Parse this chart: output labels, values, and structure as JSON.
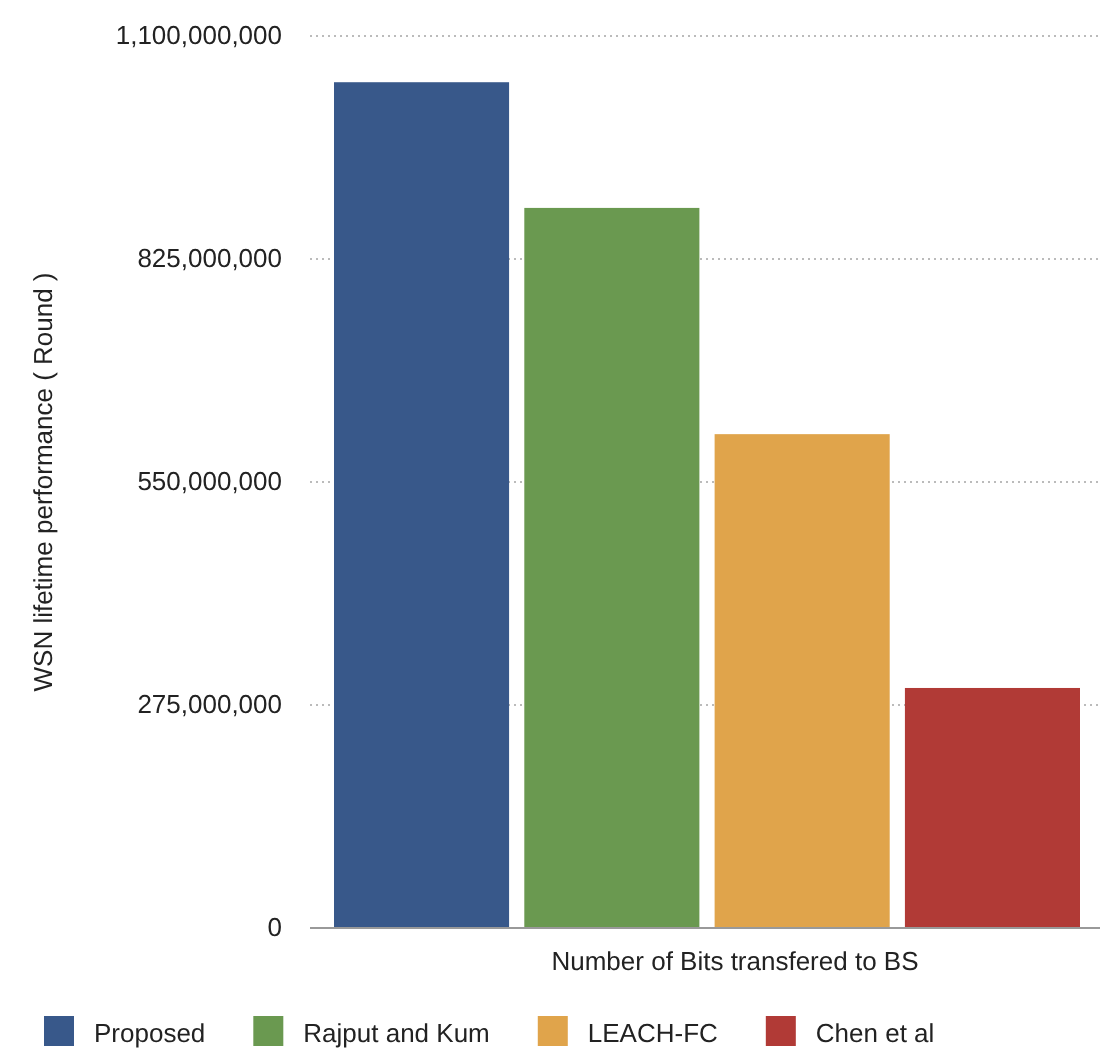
{
  "chart_data": {
    "type": "bar",
    "xlabel": "Number of Bits transfered to BS",
    "ylabel": "WSN lifetime performance ( Round )",
    "categories": [
      null
    ],
    "series": [
      {
        "name": "Proposed",
        "color": "#38588a",
        "values": [
          1043000000
        ]
      },
      {
        "name": "Rajput and Kum",
        "color": "#6a9950",
        "values": [
          888000000
        ]
      },
      {
        "name": "LEACH-FC",
        "color": "#e0a44b",
        "values": [
          609000000
        ]
      },
      {
        "name": "Chen et al",
        "color": "#b13a36",
        "values": [
          296000000
        ]
      }
    ],
    "ylim": [
      0,
      1100000000
    ],
    "yticks": [
      0,
      {
        "value": 275000000,
        "label": "275,000,000"
      },
      {
        "value": 550000000,
        "label": "550,000,000"
      },
      {
        "value": 825000000,
        "label": "825,000,000"
      },
      {
        "value": 1100000000,
        "label": "1,100,000,000"
      }
    ],
    "grid": "y",
    "legend": "bottom"
  }
}
